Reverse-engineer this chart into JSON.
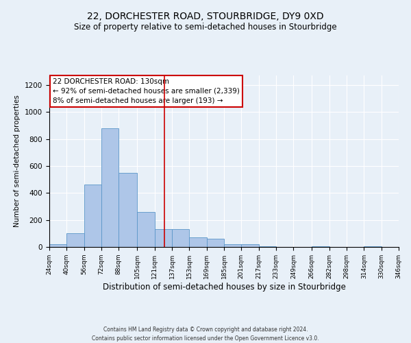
{
  "title": "22, DORCHESTER ROAD, STOURBRIDGE, DY9 0XD",
  "subtitle": "Size of property relative to semi-detached houses in Stourbridge",
  "xlabel": "Distribution of semi-detached houses by size in Stourbridge",
  "ylabel": "Number of semi-detached properties",
  "footer_line1": "Contains HM Land Registry data © Crown copyright and database right 2024.",
  "footer_line2": "Contains public sector information licensed under the Open Government Licence v3.0.",
  "annotation_title": "22 DORCHESTER ROAD: 130sqm",
  "annotation_line1": "← 92% of semi-detached houses are smaller (2,339)",
  "annotation_line2": "8% of semi-detached houses are larger (193) →",
  "bar_color": "#aec6e8",
  "bar_edge_color": "#5a96c8",
  "vline_color": "#cc0000",
  "vline_x": 130,
  "bin_edges": [
    24,
    40,
    56,
    72,
    88,
    105,
    121,
    137,
    153,
    169,
    185,
    201,
    217,
    233,
    249,
    266,
    282,
    298,
    314,
    330,
    346
  ],
  "bar_heights": [
    20,
    100,
    460,
    880,
    550,
    260,
    130,
    130,
    70,
    60,
    20,
    20,
    5,
    0,
    0,
    5,
    0,
    0,
    5,
    0
  ],
  "ylim": [
    0,
    1270
  ],
  "yticks": [
    0,
    200,
    400,
    600,
    800,
    1000,
    1200
  ],
  "background_color": "#e8f0f8",
  "annotation_box_color": "#ffffff",
  "annotation_box_edge": "#cc0000",
  "title_fontsize": 10,
  "subtitle_fontsize": 8.5,
  "ylabel_fontsize": 7.5,
  "xlabel_fontsize": 8.5,
  "tick_fontsize": 6.5,
  "ytick_fontsize": 7.5,
  "annotation_fontsize": 7.5,
  "footer_fontsize": 5.5
}
